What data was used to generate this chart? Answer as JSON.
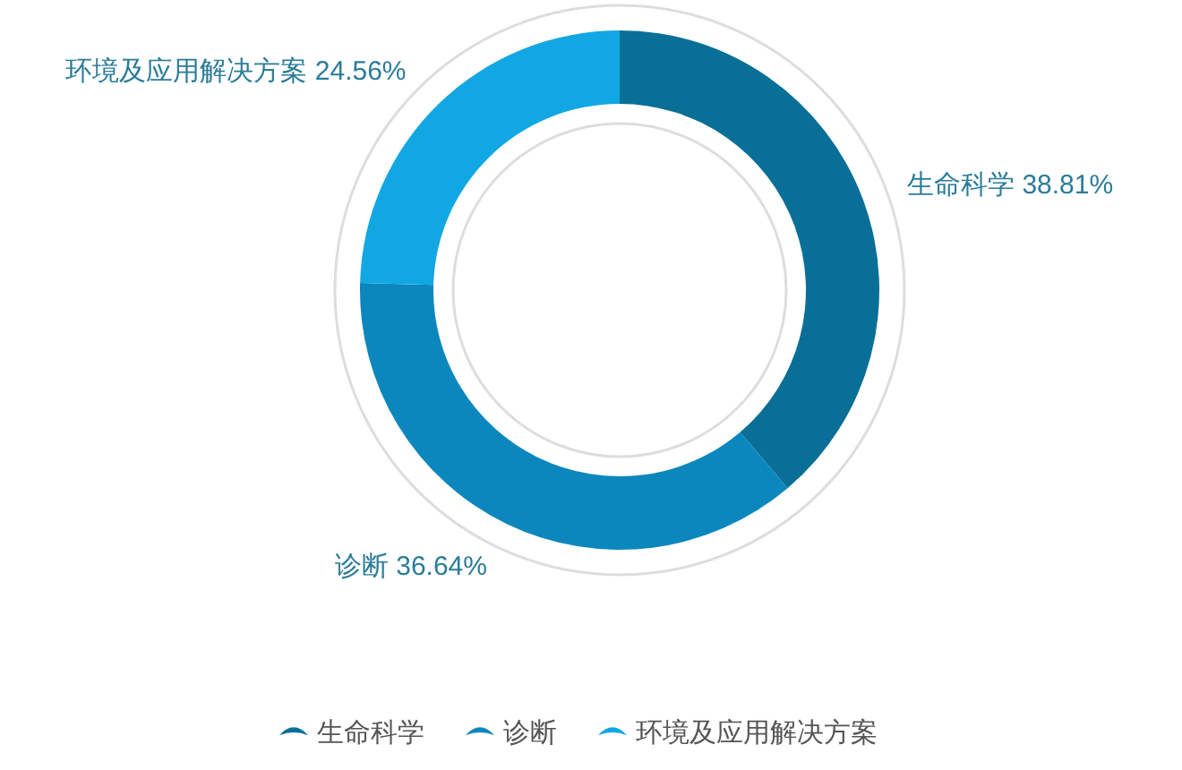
{
  "chart_data": {
    "type": "donut",
    "categories": [
      "生命科学",
      "诊断",
      "环境及应用解决方案"
    ],
    "values": [
      38.81,
      36.64,
      24.56
    ],
    "colors": [
      "#0a6f97",
      "#0b87bd",
      "#11a7e2"
    ],
    "value_labels": [
      "38.81%",
      "36.64%",
      "24.56%"
    ],
    "legend": "bottom"
  }
}
